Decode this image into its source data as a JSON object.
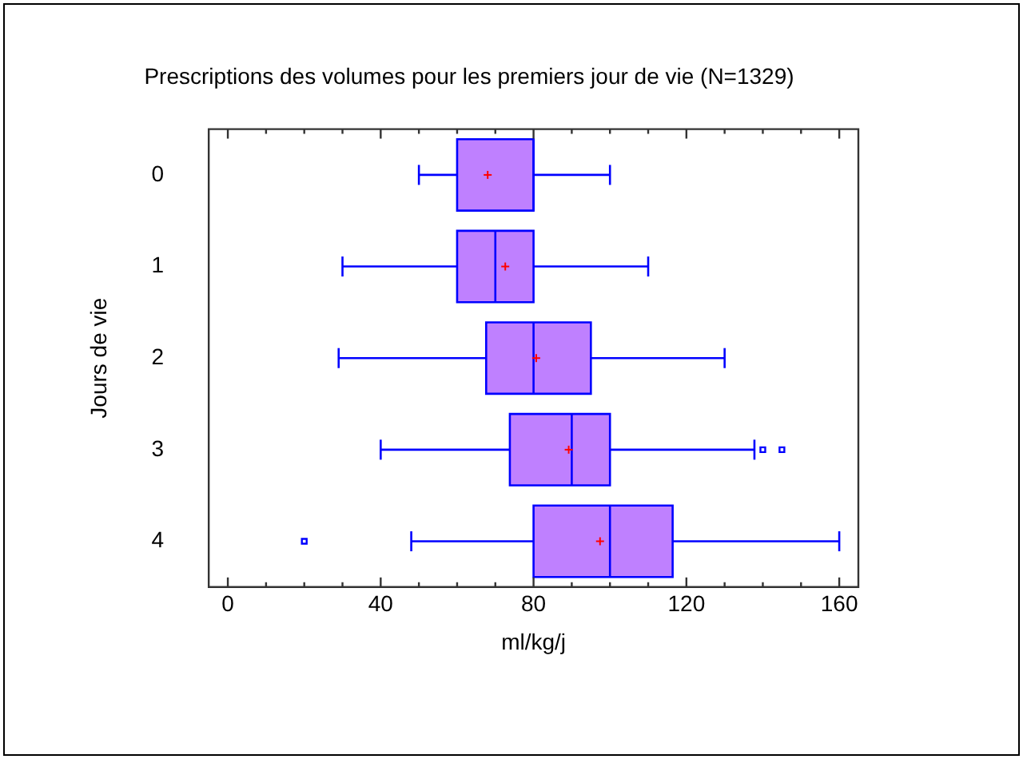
{
  "chart_data": {
    "type": "box",
    "title": "Prescriptions des volumes pour les premiers jour de vie (N=1329)",
    "xlabel": "ml/kg/j",
    "ylabel": "Jours de vie",
    "orientation": "horizontal",
    "categories": [
      "0",
      "1",
      "2",
      "3",
      "4"
    ],
    "color": "#bf80ff",
    "xlim": [
      -5,
      165
    ],
    "xticks": [
      0,
      40,
      80,
      120,
      160
    ],
    "grid": false,
    "legend": false,
    "boxes": [
      {
        "low": 50,
        "q1": 60,
        "median": 80,
        "q3": 80,
        "high": 100,
        "mean": 68
      },
      {
        "low": 30,
        "q1": 60,
        "median": 70,
        "q3": 80,
        "high": 110,
        "mean": 72.6
      },
      {
        "low": 29,
        "q1": 67.6,
        "median": 80,
        "q3": 95,
        "high": 130,
        "mean": 80.7
      },
      {
        "low": 40,
        "q1": 73.8,
        "median": 90,
        "q3": 100,
        "high": 137.8,
        "mean": 89.2,
        "outliers": [
          140,
          145
        ]
      },
      {
        "low": 48,
        "q1": 80,
        "median": 100,
        "q3": 116.4,
        "high": 160,
        "mean": 97.4,
        "outliers": [
          20
        ]
      }
    ]
  }
}
